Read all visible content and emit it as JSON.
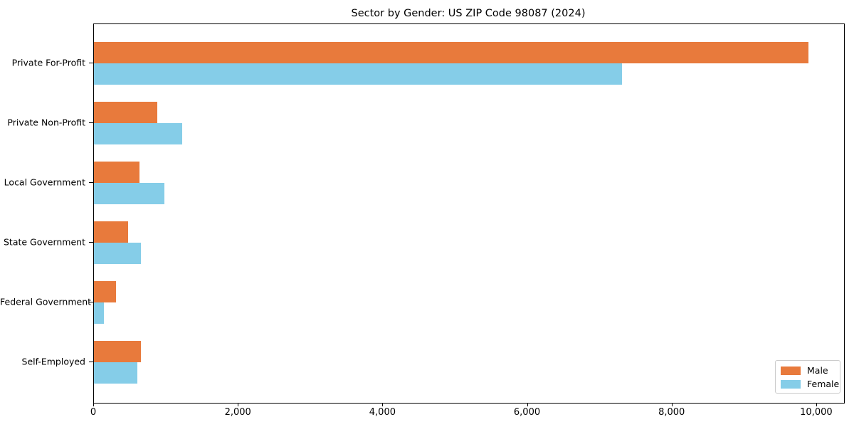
{
  "chart_data": {
    "type": "bar",
    "orientation": "horizontal",
    "title": "Sector by Gender: US ZIP Code 98087 (2024)",
    "xlabel": "",
    "ylabel": "",
    "categories": [
      "Private For-Profit",
      "Private Non-Profit",
      "Local Government",
      "State Government",
      "Federal Government",
      "Self-Employed"
    ],
    "series": [
      {
        "name": "Male",
        "color": "#e87a3c",
        "values": [
          9880,
          880,
          630,
          470,
          300,
          650
        ]
      },
      {
        "name": "Female",
        "color": "#85cde8",
        "values": [
          7300,
          1220,
          970,
          650,
          140,
          600
        ]
      }
    ],
    "xlim": [
      0,
      10375
    ],
    "xticks": [
      0,
      2000,
      4000,
      6000,
      8000,
      10000
    ],
    "xtick_labels": [
      "0",
      "2,000",
      "4,000",
      "6,000",
      "8,000",
      "10,000"
    ],
    "grid": false,
    "legend_position": "lower right"
  }
}
